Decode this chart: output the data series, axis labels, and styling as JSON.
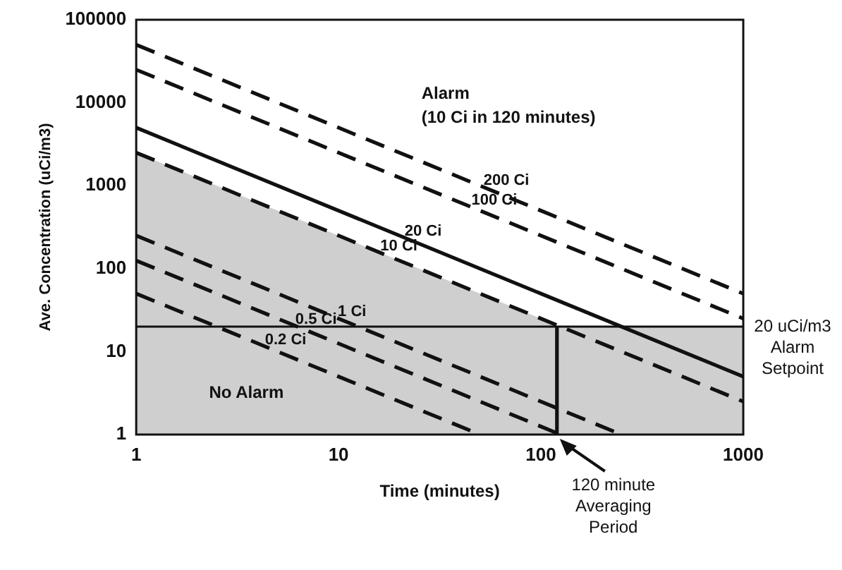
{
  "chart_data": {
    "type": "line",
    "xlabel": "Time (minutes)",
    "ylabel": "Ave. Concentration (uCi/m3)",
    "log": "xy",
    "xlim": [
      1,
      1000
    ],
    "xticks": [
      1,
      10,
      100,
      1000
    ],
    "ylim": [
      1,
      100000
    ],
    "yticks": [
      1,
      10,
      100,
      1000,
      10000,
      100000
    ],
    "grid": false,
    "legend": false,
    "marker": "none",
    "series": [
      {
        "type": "area",
        "color": "#cfcfcf",
        "x": [
          1,
          125,
          1000
        ],
        "values": [
          2500,
          20,
          20
        ]
      },
      {
        "name": "200 Ci",
        "color": "#111111",
        "line_style": "dashed",
        "x": [
          1,
          1000
        ],
        "values": [
          50000,
          50
        ]
      },
      {
        "name": "100 Ci",
        "color": "#111111",
        "line_style": "dashed",
        "x": [
          1,
          1000
        ],
        "values": [
          25000,
          25
        ]
      },
      {
        "name": "20 Ci",
        "color": "#111111",
        "line_style": "solid",
        "x": [
          1,
          1000
        ],
        "values": [
          5000,
          5
        ]
      },
      {
        "name": "10 Ci",
        "color": "#111111",
        "line_style": "dashed",
        "x": [
          1,
          1000
        ],
        "values": [
          2500,
          2.5
        ]
      },
      {
        "name": "1 Ci",
        "color": "#111111",
        "line_style": "dashed",
        "x": [
          1,
          250
        ],
        "values": [
          250,
          1
        ]
      },
      {
        "name": "0.5 Ci",
        "color": "#111111",
        "line_style": "dashed",
        "x": [
          1,
          125
        ],
        "values": [
          125,
          1
        ]
      },
      {
        "name": "0.2 Ci",
        "color": "#111111",
        "line_style": "dashed",
        "x": [
          1,
          50
        ],
        "values": [
          50,
          1
        ]
      },
      {
        "color": "#111111",
        "line_style": "solid",
        "x": [
          120,
          120
        ],
        "values": [
          1,
          20
        ]
      }
    ],
    "ref_lines": [
      {
        "axis": "y",
        "value": 20,
        "label": "20 uCi/m3\nAlarm\nSetpoint",
        "color": "#111111"
      }
    ],
    "annotations": [
      "Alarm\n(10 Ci in 120 minutes)",
      "No Alarm",
      {
        "text": "120 minute\nAveraging\nPeriod",
        "x": 120,
        "y": 1
      }
    ]
  }
}
